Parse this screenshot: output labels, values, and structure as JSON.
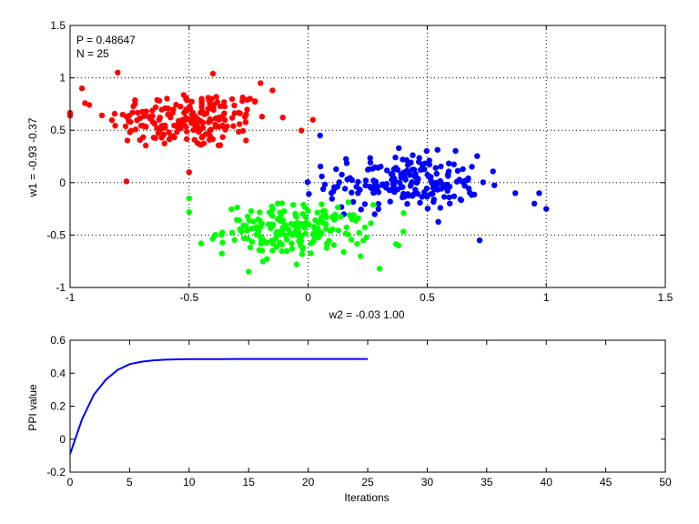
{
  "chart_data": [
    {
      "type": "scatter",
      "annotations": [
        "P = 0.48647",
        "N = 25"
      ],
      "xlabel": "w2 = -0.03  1.00",
      "ylabel": "w1 = -0.93  -0.37",
      "xlim": [
        -1,
        1.5
      ],
      "ylim": [
        -1,
        1.5
      ],
      "xticks": [
        -1,
        -0.5,
        0,
        0.5,
        1,
        1.5
      ],
      "yticks": [
        -1,
        -0.5,
        0,
        0.5,
        1,
        1.5
      ],
      "xtick_labels": [
        "-1",
        "-0.5",
        "0",
        "0.5",
        "1",
        "1.5"
      ],
      "ytick_labels": [
        "-1",
        "-0.5",
        "0",
        "0.5",
        "1",
        "1.5"
      ],
      "grid": true,
      "clusters": [
        {
          "color": "#ff0000",
          "center": [
            -0.5,
            0.6
          ],
          "spread": [
            0.17,
            0.14
          ],
          "count": 200,
          "outliers": [
            [
              -1.0,
              0.64
            ],
            [
              -0.95,
              0.9
            ],
            [
              -0.8,
              1.05
            ],
            [
              -0.5,
              0.1
            ],
            [
              0.02,
              0.6
            ],
            [
              -0.15,
              0.88
            ],
            [
              -0.2,
              0.95
            ],
            [
              -0.4,
              1.04
            ]
          ]
        },
        {
          "color": "#0000ff",
          "center": [
            0.4,
            0.0
          ],
          "spread": [
            0.16,
            0.13
          ],
          "count": 200,
          "outliers": [
            [
              0.97,
              -0.1
            ],
            [
              1.0,
              -0.25
            ],
            [
              0.95,
              -0.2
            ],
            [
              0.87,
              -0.1
            ],
            [
              0.72,
              -0.55
            ],
            [
              0.05,
              0.45
            ]
          ]
        },
        {
          "color": "#00ff00",
          "center": [
            -0.05,
            -0.45
          ],
          "spread": [
            0.15,
            0.12
          ],
          "count": 200,
          "outliers": [
            [
              -0.5,
              -0.15
            ],
            [
              -0.5,
              -0.28
            ],
            [
              -0.45,
              -0.58
            ],
            [
              0.3,
              -0.82
            ],
            [
              0.38,
              -0.6
            ],
            [
              -0.25,
              -0.85
            ]
          ]
        }
      ]
    },
    {
      "type": "line",
      "xlabel": "Iterations",
      "ylabel": "PPI value",
      "xlim": [
        0,
        50
      ],
      "ylim": [
        -0.2,
        0.6
      ],
      "xticks": [
        0,
        5,
        10,
        15,
        20,
        25,
        30,
        35,
        40,
        45,
        50
      ],
      "yticks": [
        -0.2,
        0,
        0.2,
        0.4,
        0.6
      ],
      "xtick_labels": [
        "0",
        "5",
        "10",
        "15",
        "20",
        "25",
        "30",
        "35",
        "40",
        "45",
        "50"
      ],
      "ytick_labels": [
        "-0.2",
        "0",
        "0.2",
        "0.4",
        "0.6"
      ],
      "grid": false,
      "series": [
        {
          "color": "#0000ff",
          "x": [
            0,
            1,
            2,
            3,
            4,
            5,
            6,
            7,
            8,
            9,
            10,
            11,
            12,
            13,
            14,
            15,
            16,
            17,
            18,
            19,
            20,
            21,
            22,
            23,
            24,
            25
          ],
          "values": [
            -0.09,
            0.12,
            0.27,
            0.36,
            0.42,
            0.455,
            0.47,
            0.478,
            0.482,
            0.484,
            0.485,
            0.4855,
            0.486,
            0.486,
            0.4862,
            0.4863,
            0.4864,
            0.4864,
            0.4864,
            0.4864,
            0.4865,
            0.4865,
            0.4865,
            0.4865,
            0.4865,
            0.4865
          ]
        }
      ]
    }
  ]
}
